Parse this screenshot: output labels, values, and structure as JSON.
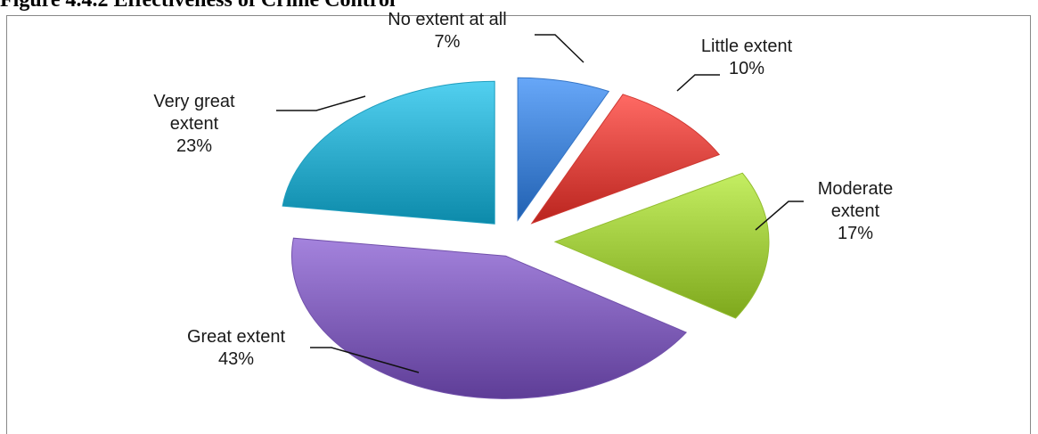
{
  "figure": {
    "title": "Figure 4.4.2 Effectiveness of Crime Control"
  },
  "chart_data": {
    "type": "pie",
    "exploded": true,
    "style": "3d-tilted",
    "slices": [
      {
        "label_lines": [
          "No extent at all"
        ],
        "percent_label": "7%",
        "value": 7,
        "color": "#3f7fd0"
      },
      {
        "label_lines": [
          "Little extent"
        ],
        "percent_label": "10%",
        "value": 10,
        "color": "#d8423c"
      },
      {
        "label_lines": [
          "Moderate",
          "extent"
        ],
        "percent_label": "17%",
        "value": 17,
        "color": "#9cc63a"
      },
      {
        "label_lines": [
          "Great extent"
        ],
        "percent_label": "43%",
        "value": 43,
        "color": "#7c5bb5"
      },
      {
        "label_lines": [
          "Very great",
          "extent"
        ],
        "percent_label": "23%",
        "value": 23,
        "color": "#2aa8c8"
      }
    ]
  }
}
